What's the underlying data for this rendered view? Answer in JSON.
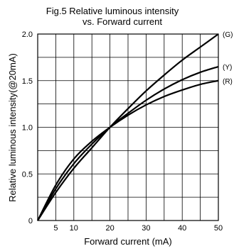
{
  "chart_data": {
    "type": "line",
    "title_lines": [
      "Fig.5 Relative luminous intensity",
      "vs. Forward current"
    ],
    "xlabel": "Forward current (mA)",
    "ylabel": "Relative luminous intensity(@20mA)",
    "xlim": [
      0,
      50
    ],
    "ylim": [
      0,
      2.0
    ],
    "x_ticks": [
      5,
      10,
      20,
      30,
      40,
      50
    ],
    "y_ticks": [
      0,
      0.5,
      1.0,
      1.5,
      2.0
    ],
    "x_tick_labels": [
      "5",
      "10",
      "20",
      "30",
      "40",
      "50"
    ],
    "y_tick_labels": [
      "0",
      "0.5",
      "1.0",
      "1.5",
      "2.0"
    ],
    "grid": true,
    "series": [
      {
        "name": "(G)",
        "color": "#000000",
        "x": [
          0,
          5,
          10,
          15,
          20,
          25,
          30,
          35,
          40,
          45,
          50
        ],
        "y": [
          0,
          0.3,
          0.56,
          0.78,
          1.0,
          1.2,
          1.39,
          1.56,
          1.72,
          1.86,
          2.0
        ]
      },
      {
        "name": "(Y)",
        "color": "#000000",
        "x": [
          0,
          5,
          10,
          15,
          20,
          25,
          30,
          35,
          40,
          45,
          50
        ],
        "y": [
          0,
          0.34,
          0.61,
          0.82,
          1.0,
          1.15,
          1.29,
          1.41,
          1.51,
          1.59,
          1.65
        ]
      },
      {
        "name": "(R)",
        "color": "#000000",
        "x": [
          0,
          5,
          10,
          15,
          20,
          25,
          30,
          35,
          40,
          45,
          50
        ],
        "y": [
          0,
          0.38,
          0.66,
          0.85,
          1.0,
          1.13,
          1.24,
          1.33,
          1.4,
          1.46,
          1.5
        ]
      }
    ]
  }
}
